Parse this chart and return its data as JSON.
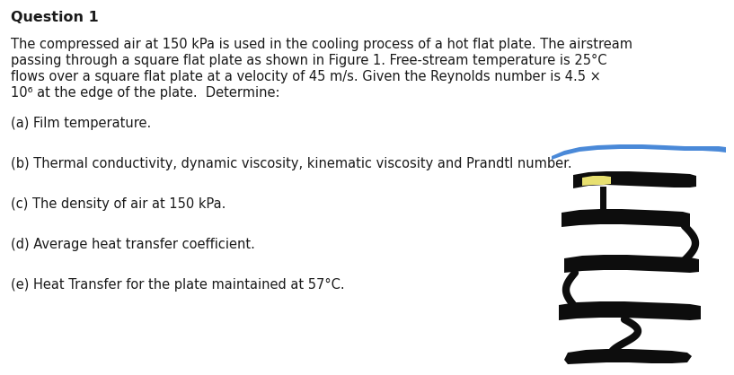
{
  "title": "Question 1",
  "background_color": "#ffffff",
  "text_color": "#1a1a1a",
  "paragraph_line1": "The compressed air at 150 kPa is used in the cooling process of a hot flat plate. The airstream",
  "paragraph_line2": "passing through a square flat plate as shown in Figure 1. Free-stream temperature is 25°C",
  "paragraph_line3": "flows over a square flat plate at a velocity of 45 m/s. Given the Reynolds number is 4.5 ×",
  "paragraph_line4": "10⁶ at the edge of the plate.  Determine:",
  "items": [
    "(a) Film temperature.",
    "(b) Thermal conductivity, dynamic viscosity, kinematic viscosity and Prandtl number.",
    "(c) The density of air at 150 kPa.",
    "(d) Average heat transfer coefficient.",
    "(e) Heat Transfer for the plate maintained at 57°C."
  ],
  "blue_color": "#3a7fd5",
  "yellow_color": "#e8e070",
  "black_color": "#0d0d0d",
  "font_size": 10.5,
  "title_font_size": 11.5
}
